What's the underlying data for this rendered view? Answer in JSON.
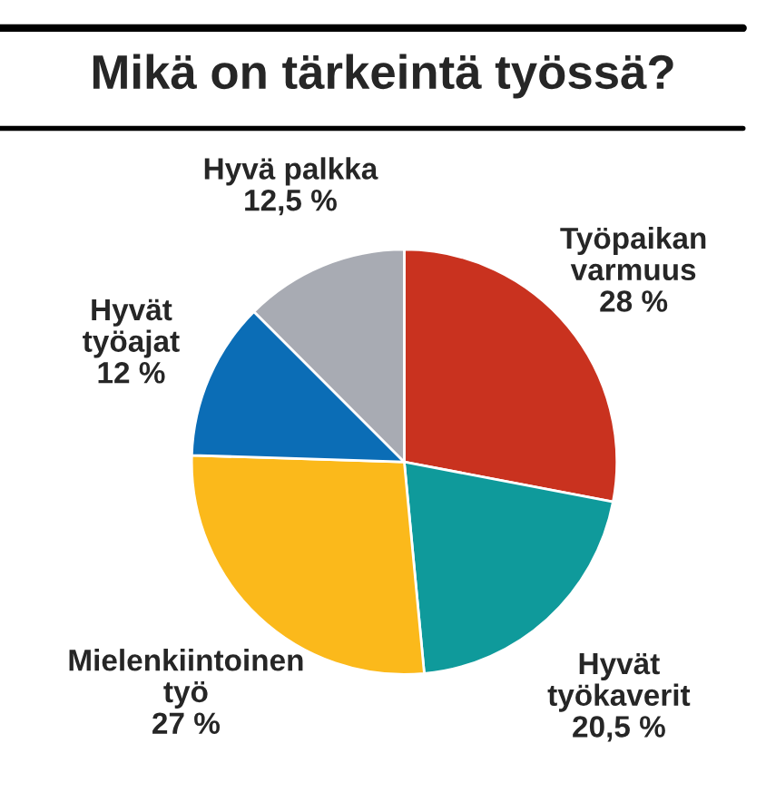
{
  "chart_data": {
    "type": "pie",
    "title": "Mikä on tärkeintä työssä?",
    "categories": [
      "Työpaikan\nvarmuus",
      "Hyvät\ntyökaverit",
      "Mielenkiintoinen\ntyö",
      "Hyvät\ntyöajat",
      "Hyvä palkka"
    ],
    "values": [
      28,
      20.5,
      27,
      12,
      12.5
    ],
    "value_labels": [
      "28 %",
      "20,5 %",
      "27 %",
      "12 %",
      "12,5 %"
    ],
    "colors": [
      "#c9321f",
      "#0f9a9b",
      "#fbb91b",
      "#0b6db6",
      "#a8abb3"
    ]
  }
}
